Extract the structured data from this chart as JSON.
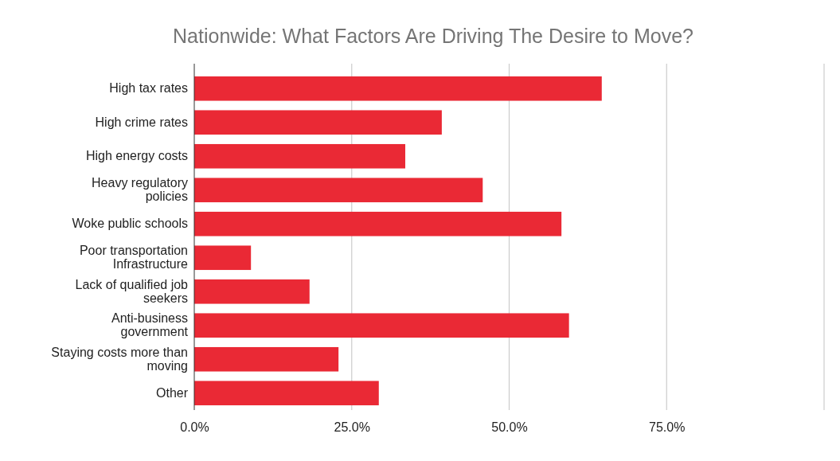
{
  "chart_data": {
    "type": "bar",
    "orientation": "horizontal",
    "title": "Nationwide: What Factors Are Driving The Desire to Move?",
    "categories": [
      "High tax rates",
      "High crime rates",
      "High energy costs",
      "Heavy regulatory policies",
      "Woke public schools",
      "Poor transportation Infrastructure",
      "Lack of qualified job seekers",
      "Anti-business government",
      "Staying costs more than moving",
      "Other"
    ],
    "values": [
      64.7,
      39.3,
      33.5,
      45.8,
      58.3,
      9.0,
      18.3,
      59.5,
      22.9,
      29.3
    ],
    "color": "#ea2935",
    "xlim": [
      0,
      100
    ],
    "xticks": [
      {
        "value": 0,
        "label": "0.0%"
      },
      {
        "value": 25,
        "label": "25.0%"
      },
      {
        "value": 50,
        "label": "50.0%"
      },
      {
        "value": 75,
        "label": "75.0%"
      },
      {
        "value": 100,
        "label": null
      }
    ],
    "grid": "x"
  }
}
